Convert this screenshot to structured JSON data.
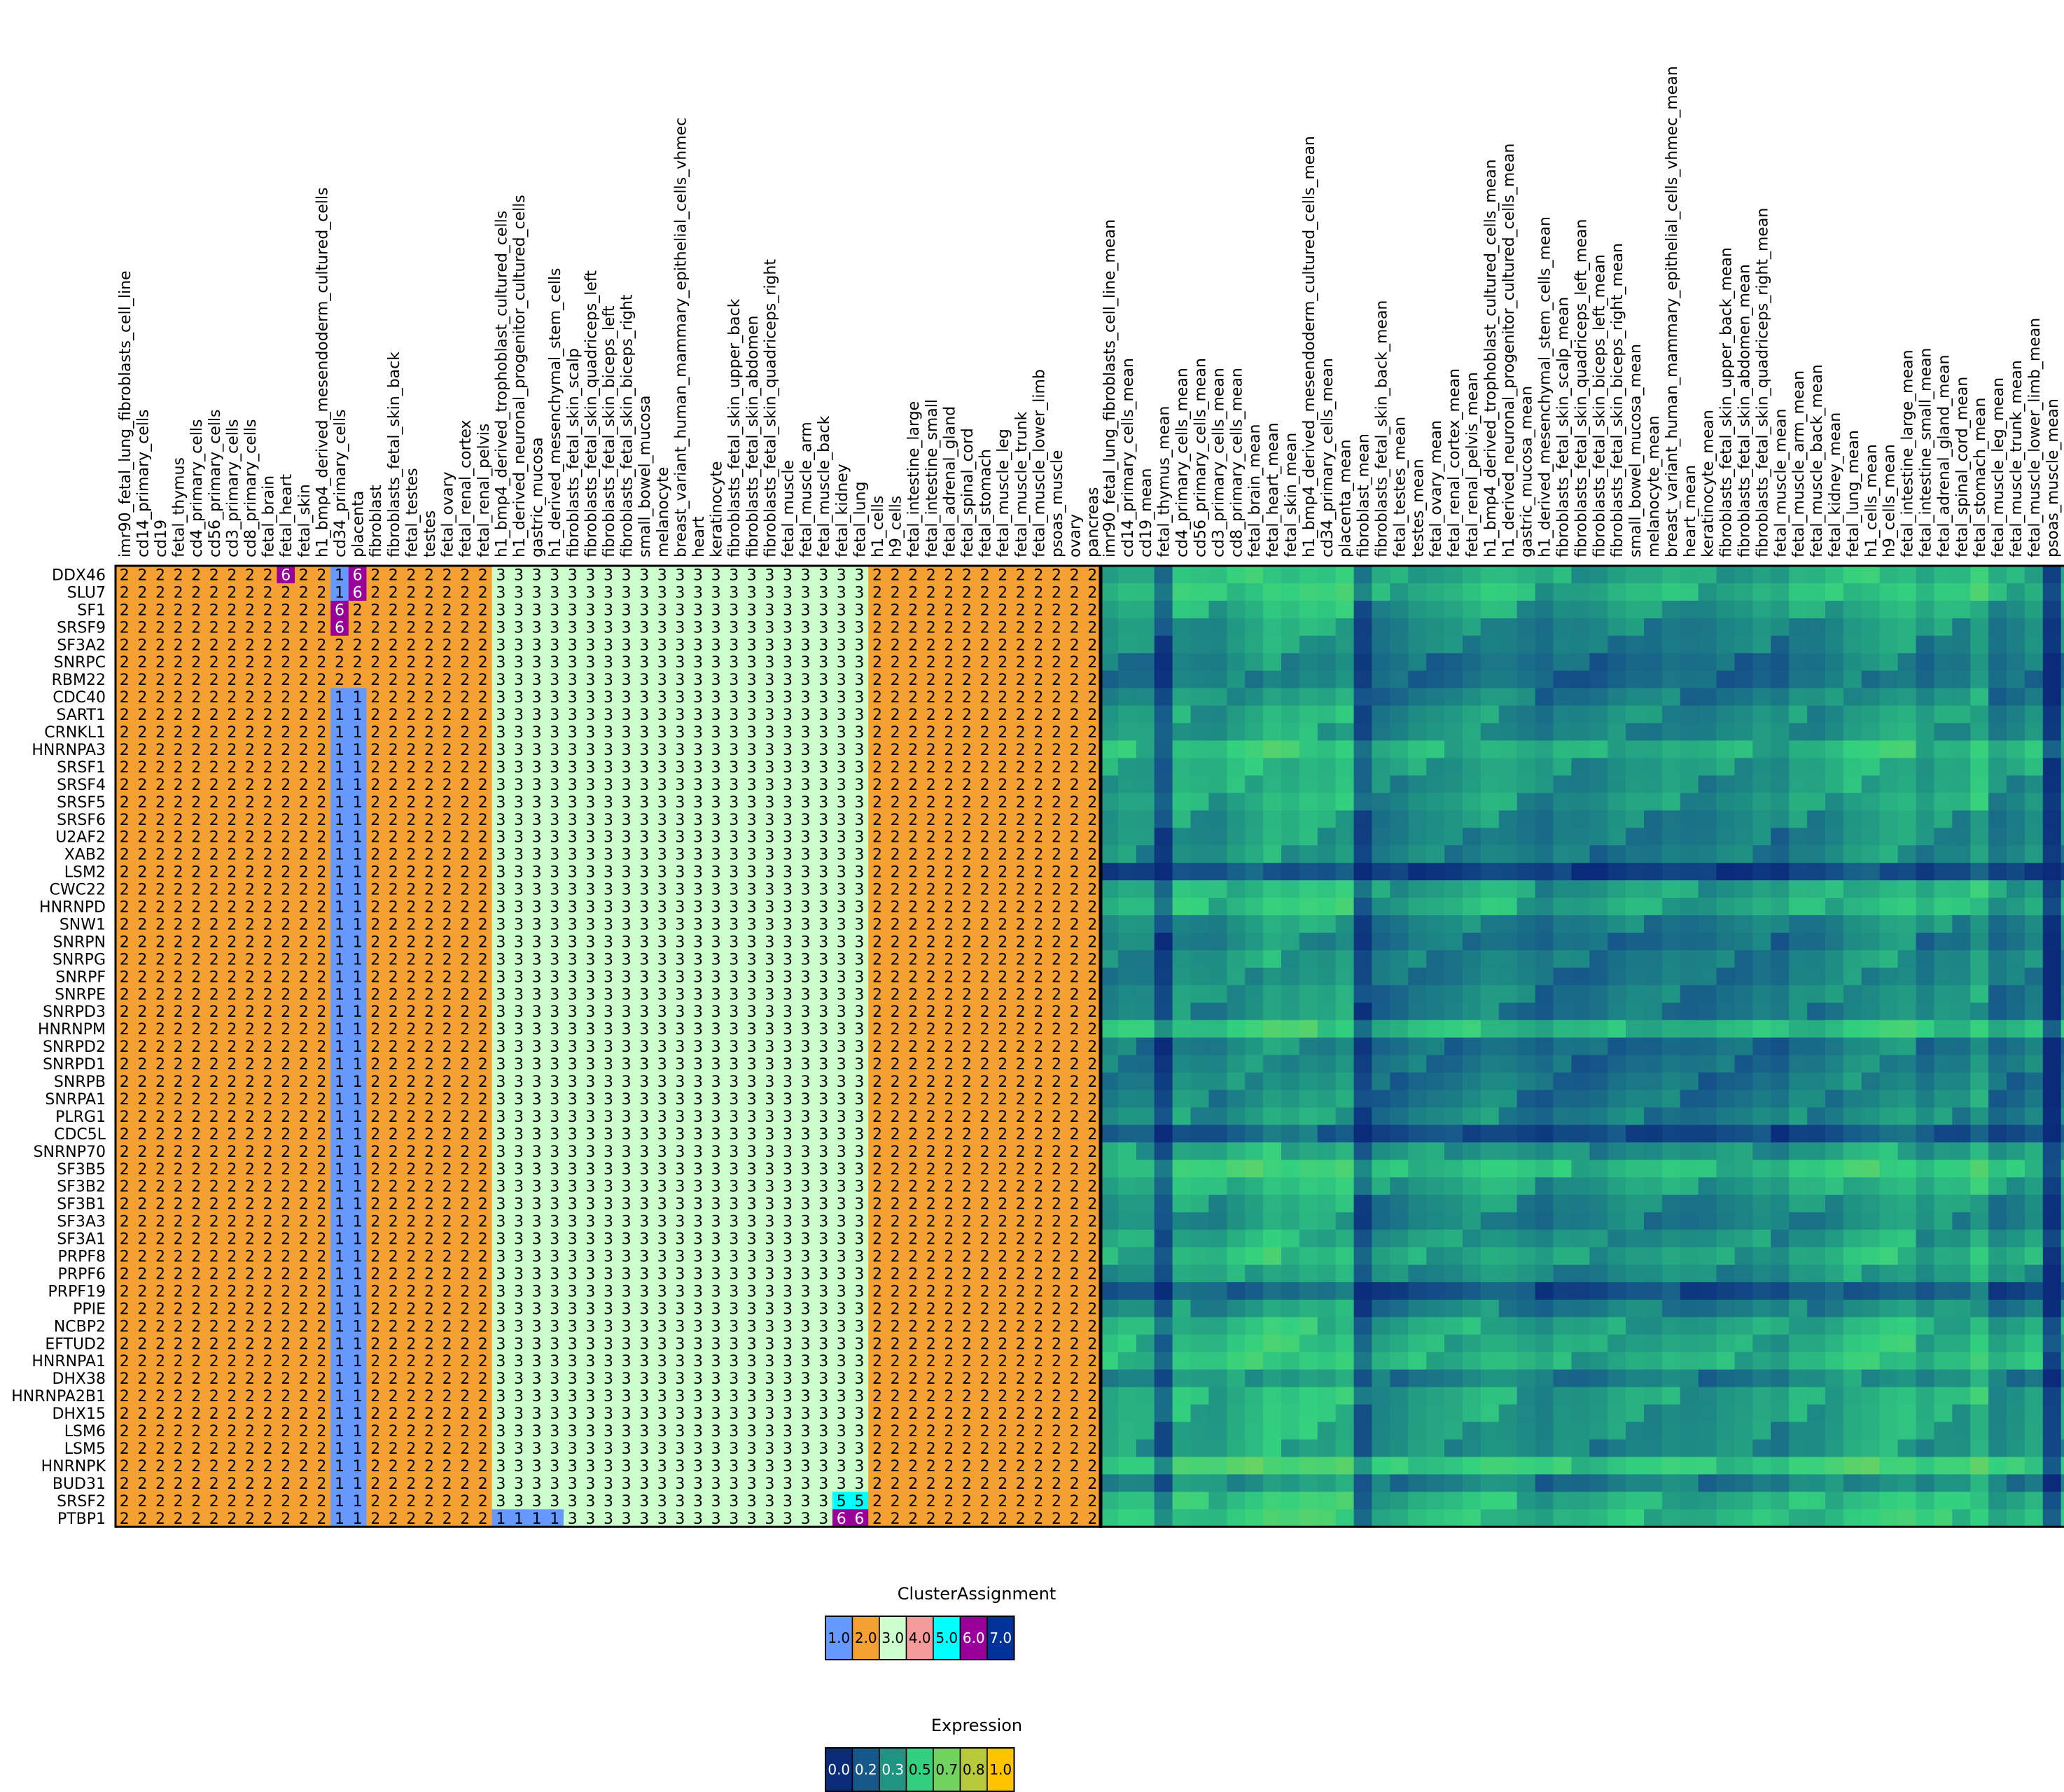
{
  "chart_data": [
    {
      "type": "heatmap",
      "name": "cluster-assignment-matrix",
      "rows": [
        "DDX46",
        "SLU7",
        "SF1",
        "SRSF9",
        "SF3A2",
        "SNRPC",
        "RBM22",
        "CDC40",
        "SART1",
        "CRNKL1",
        "HNRNPA3",
        "SRSF1",
        "SRSF4",
        "SRSF5",
        "SRSF6",
        "U2AF2",
        "XAB2",
        "LSM2",
        "CWC22",
        "HNRNPD",
        "SNW1",
        "SNRPN",
        "SNRPG",
        "SNRPF",
        "SNRPE",
        "SNRPD3",
        "HNRNPM",
        "SNRPD2",
        "SNRPD1",
        "SNRPB",
        "SNRPA1",
        "PLRG1",
        "CDC5L",
        "SNRNP70",
        "SF3B5",
        "SF3B2",
        "SF3B1",
        "SF3A3",
        "SF3A1",
        "PRPF8",
        "PRPF6",
        "PRPF19",
        "PPIE",
        "NCBP2",
        "EFTUD2",
        "HNRNPA1",
        "DHX38",
        "HNRNPA2B1",
        "DHX15",
        "LSM6",
        "LSM5",
        "HNRNPK",
        "BUD31",
        "SRSF2",
        "PTBP1"
      ],
      "columns": [
        "imr90_fetal_lung_fibroblasts_cell_line",
        "cd14_primary_cells",
        "cd19",
        "fetal_thymus",
        "cd4_primary_cells",
        "cd56_primary_cells",
        "cd3_primary_cells",
        "cd8_primary_cells",
        "fetal_brain",
        "fetal_heart",
        "fetal_skin",
        "h1_bmp4_derived_mesendoderm_cultured_cells",
        "cd34_primary_cells",
        "placenta",
        "fibroblast",
        "fibroblasts_fetal_skin_back",
        "fetal_testes",
        "testes",
        "fetal_ovary",
        "fetal_renal_cortex",
        "fetal_renal_pelvis",
        "h1_bmp4_derived_trophoblast_cultured_cells",
        "h1_derived_neuronal_progenitor_cultured_cells",
        "gastric_mucosa",
        "h1_derived_mesenchymal_stem_cells",
        "fibroblasts_fetal_skin_scalp",
        "fibroblasts_fetal_skin_quadriceps_left",
        "fibroblasts_fetal_skin_biceps_left",
        "fibroblasts_fetal_skin_biceps_right",
        "small_bowel_mucosa",
        "melanocyte",
        "breast_variant_human_mammary_epithelial_cells_vhmec",
        "heart",
        "keratinocyte",
        "fibroblasts_fetal_skin_upper_back",
        "fibroblasts_fetal_skin_abdomen",
        "fibroblasts_fetal_skin_quadriceps_right",
        "fetal_muscle",
        "fetal_muscle_arm",
        "fetal_muscle_back",
        "fetal_kidney",
        "fetal_lung",
        "h1_cells",
        "h9_cells",
        "fetal_intestine_large",
        "fetal_intestine_small",
        "fetal_adrenal_gland",
        "fetal_spinal_cord",
        "fetal_stomach",
        "fetal_muscle_leg",
        "fetal_muscle_trunk",
        "fetal_muscle_lower_limb",
        "psoas_muscle",
        "ovary",
        "pancreas"
      ],
      "default_by_column": [
        2,
        2,
        2,
        2,
        2,
        2,
        2,
        2,
        2,
        2,
        2,
        2,
        1,
        1,
        2,
        2,
        2,
        2,
        2,
        2,
        2,
        3,
        3,
        3,
        3,
        3,
        3,
        3,
        3,
        3,
        3,
        3,
        3,
        3,
        3,
        3,
        3,
        3,
        3,
        3,
        3,
        3,
        2,
        2,
        2,
        2,
        2,
        2,
        2,
        2,
        2,
        2,
        2,
        2,
        2
      ],
      "exceptions": [
        {
          "row": "DDX46",
          "column": "fetal_heart",
          "value": 6
        },
        {
          "row": "DDX46",
          "column": "placenta",
          "value": 6
        },
        {
          "row": "SLU7",
          "column": "placenta",
          "value": 6
        },
        {
          "row": "SF1",
          "column": "cd34_primary_cells",
          "value": 6
        },
        {
          "row": "SF1",
          "column": "placenta",
          "value": 2
        },
        {
          "row": "SRSF9",
          "column": "cd34_primary_cells",
          "value": 6
        },
        {
          "row": "SRSF9",
          "column": "placenta",
          "value": 2
        },
        {
          "row": "SF3A2",
          "column": "cd34_primary_cells",
          "value": 2
        },
        {
          "row": "SF3A2",
          "column": "placenta",
          "value": 2
        },
        {
          "row": "SNRPC",
          "column": "cd34_primary_cells",
          "value": 2
        },
        {
          "row": "SNRPC",
          "column": "placenta",
          "value": 2
        },
        {
          "row": "RBM22",
          "column": "cd34_primary_cells",
          "value": 2
        },
        {
          "row": "RBM22",
          "column": "placenta",
          "value": 2
        },
        {
          "row": "SRSF2",
          "column": "fetal_kidney",
          "value": 5
        },
        {
          "row": "SRSF2",
          "column": "fetal_lung",
          "value": 5
        },
        {
          "row": "PTBP1",
          "column": "h1_bmp4_derived_trophoblast_cultured_cells",
          "value": 1
        },
        {
          "row": "PTBP1",
          "column": "h1_derived_neuronal_progenitor_cultured_cells",
          "value": 1
        },
        {
          "row": "PTBP1",
          "column": "gastric_mucosa",
          "value": 1
        },
        {
          "row": "PTBP1",
          "column": "h1_derived_mesenchymal_stem_cells",
          "value": 1
        },
        {
          "row": "PTBP1",
          "column": "fetal_kidney",
          "value": 6
        },
        {
          "row": "PTBP1",
          "column": "fetal_lung",
          "value": 6
        }
      ]
    },
    {
      "type": "heatmap",
      "name": "expression-matrix",
      "rows": [
        "DDX46",
        "SLU7",
        "SF1",
        "SRSF9",
        "SF3A2",
        "SNRPC",
        "RBM22",
        "CDC40",
        "SART1",
        "CRNKL1",
        "HNRNPA3",
        "SRSF1",
        "SRSF4",
        "SRSF5",
        "SRSF6",
        "U2AF2",
        "XAB2",
        "LSM2",
        "CWC22",
        "HNRNPD",
        "SNW1",
        "SNRPN",
        "SNRPG",
        "SNRPF",
        "SNRPE",
        "SNRPD3",
        "HNRNPM",
        "SNRPD2",
        "SNRPD1",
        "SNRPB",
        "SNRPA1",
        "PLRG1",
        "CDC5L",
        "SNRNP70",
        "SF3B5",
        "SF3B2",
        "SF3B1",
        "SF3A3",
        "SF3A1",
        "PRPF8",
        "PRPF6",
        "PRPF19",
        "PPIE",
        "NCBP2",
        "EFTUD2",
        "HNRNPA1",
        "DHX38",
        "HNRNPA2B1",
        "DHX15",
        "LSM6",
        "LSM5",
        "HNRNPK",
        "BUD31",
        "SRSF2",
        "PTBP1"
      ],
      "columns": [
        "imr90_fetal_lung_fibroblasts_cell_line_mean",
        "cd14_primary_cells_mean",
        "cd19_mean",
        "fetal_thymus_mean",
        "cd4_primary_cells_mean",
        "cd56_primary_cells_mean",
        "cd3_primary_cells_mean",
        "cd8_primary_cells_mean",
        "fetal_brain_mean",
        "fetal_heart_mean",
        "fetal_skin_mean",
        "h1_bmp4_derived_mesendoderm_cultured_cells_mean",
        "cd34_primary_cells_mean",
        "placenta_mean",
        "fibroblast_mean",
        "fibroblasts_fetal_skin_back_mean",
        "fetal_testes_mean",
        "testes_mean",
        "fetal_ovary_mean",
        "fetal_renal_cortex_mean",
        "fetal_renal_pelvis_mean",
        "h1_bmp4_derived_trophoblast_cultured_cells_mean",
        "h1_derived_neuronal_progenitor_cultured_cells_mean",
        "gastric_mucosa_mean",
        "h1_derived_mesenchymal_stem_cells_mean",
        "fibroblasts_fetal_skin_scalp_mean",
        "fibroblasts_fetal_skin_quadriceps_left_mean",
        "fibroblasts_fetal_skin_biceps_left_mean",
        "fibroblasts_fetal_skin_biceps_right_mean",
        "small_bowel_mucosa_mean",
        "melanocyte_mean",
        "breast_variant_human_mammary_epithelial_cells_vhmec_mean",
        "heart_mean",
        "keratinocyte_mean",
        "fibroblasts_fetal_skin_upper_back_mean",
        "fibroblasts_fetal_skin_abdomen_mean",
        "fibroblasts_fetal_skin_quadriceps_right_mean",
        "fetal_muscle_mean",
        "fetal_muscle_arm_mean",
        "fetal_muscle_back_mean",
        "fetal_kidney_mean",
        "fetal_lung_mean",
        "h1_cells_mean",
        "h9_cells_mean",
        "fetal_intestine_large_mean",
        "fetal_intestine_small_mean",
        "fetal_adrenal_gland_mean",
        "fetal_spinal_cord_mean",
        "fetal_stomach_mean",
        "fetal_muscle_leg_mean",
        "fetal_muscle_trunk_mean",
        "fetal_muscle_lower_limb_mean",
        "psoas_muscle_mean",
        "ovary_mean",
        "pancreas_mean"
      ],
      "value_range": [
        0,
        1
      ],
      "row_levels": [
        0.42,
        0.45,
        0.38,
        0.32,
        0.3,
        0.25,
        0.24,
        0.3,
        0.34,
        0.33,
        0.44,
        0.38,
        0.36,
        0.37,
        0.32,
        0.3,
        0.3,
        0.1,
        0.4,
        0.42,
        0.3,
        0.26,
        0.3,
        0.28,
        0.3,
        0.28,
        0.46,
        0.25,
        0.26,
        0.27,
        0.28,
        0.3,
        0.14,
        0.36,
        0.48,
        0.4,
        0.33,
        0.3,
        0.36,
        0.4,
        0.34,
        0.16,
        0.3,
        0.4,
        0.42,
        0.44,
        0.3,
        0.4,
        0.38,
        0.36,
        0.34,
        0.52,
        0.3,
        0.44,
        0.46
      ],
      "column_offsets": [
        0.0,
        0.02,
        0.0,
        -0.2,
        0.05,
        0.02,
        0.0,
        0.04,
        0.06,
        0.1,
        0.06,
        0.08,
        0.05,
        0.08,
        -0.2,
        -0.06,
        -0.05,
        -0.02,
        -0.02,
        -0.02,
        0.0,
        0.02,
        0.0,
        -0.04,
        -0.08,
        -0.04,
        -0.06,
        -0.06,
        -0.03,
        -0.02,
        -0.04,
        -0.02,
        -0.05,
        -0.06,
        -0.04,
        -0.04,
        -0.02,
        -0.06,
        0.0,
        -0.02,
        0.0,
        0.04,
        0.04,
        0.06,
        0.06,
        -0.02,
        0.02,
        0.0,
        0.08,
        -0.06,
        -0.04,
        0.0,
        -0.3,
        0.0,
        0.02
      ]
    }
  ],
  "legends": {
    "cluster": {
      "title": "ClusterAssignment",
      "labels": [
        "1.0",
        "2.0",
        "3.0",
        "4.0",
        "5.0",
        "6.0",
        "7.0"
      ],
      "colors": [
        "#6699ff",
        "#f5a033",
        "#ccffcc",
        "#f59a9a",
        "#00ffff",
        "#990099",
        "#003399"
      ]
    },
    "expression": {
      "title": "Expression",
      "labels": [
        "0.0",
        "0.2",
        "0.3",
        "0.5",
        "0.7",
        "0.8",
        "1.0"
      ],
      "colors": [
        "#0a2a7a",
        "#16588a",
        "#1f9483",
        "#33d17f",
        "#6fd35e",
        "#b8c93a",
        "#ffc300"
      ]
    }
  },
  "cluster_colors": {
    "1": "#6699ff",
    "2": "#f5a033",
    "3": "#ccffcc",
    "4": "#f59a9a",
    "5": "#00ffff",
    "6": "#990099",
    "7": "#003399"
  }
}
